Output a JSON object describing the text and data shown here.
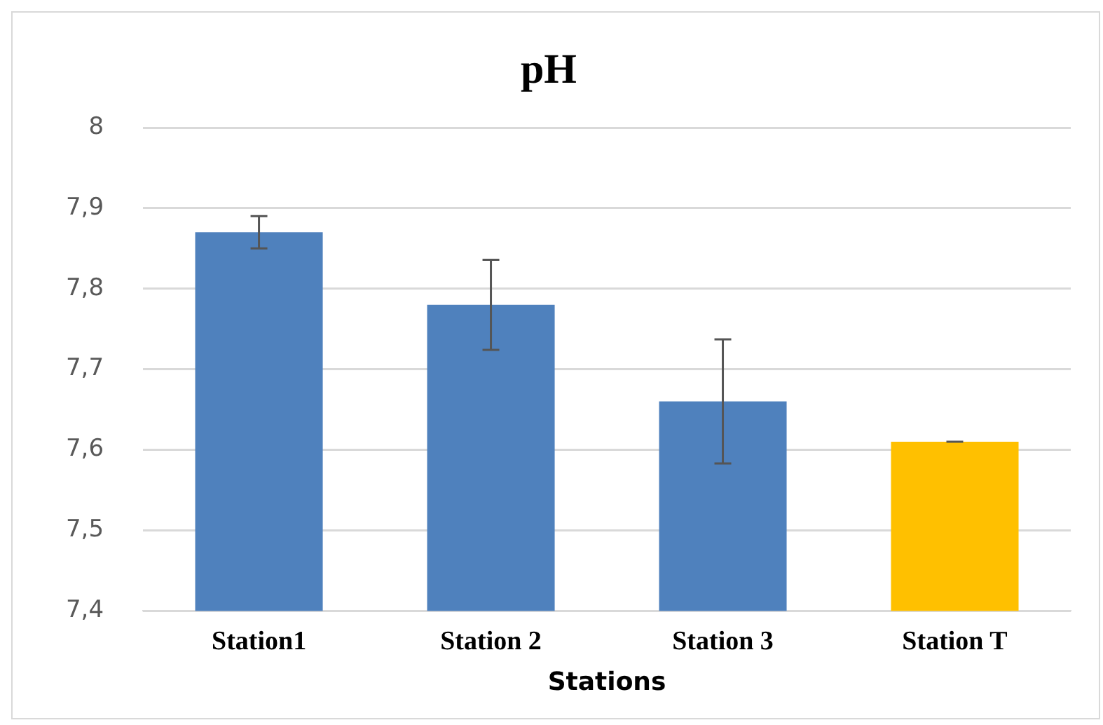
{
  "chart_data": {
    "type": "bar",
    "title": "pH",
    "xlabel": "Stations",
    "categories": [
      "Station1",
      "Station 2",
      "Station 3",
      "Station T"
    ],
    "values": [
      7.87,
      7.78,
      7.66,
      7.61
    ],
    "colors": [
      "#4f81bd",
      "#4f81bd",
      "#4f81bd",
      "#ffc000"
    ],
    "errors": [
      0.02,
      0.056,
      0.077,
      0
    ],
    "ylim": [
      7.4,
      8
    ],
    "yticks": [
      {
        "value": 7.4,
        "label": "7,4"
      },
      {
        "value": 7.5,
        "label": "7,5"
      },
      {
        "value": 7.6,
        "label": "7,6"
      },
      {
        "value": 7.7,
        "label": "7,7"
      },
      {
        "value": 7.8,
        "label": "7,8"
      },
      {
        "value": 7.9,
        "label": "7,9"
      },
      {
        "value": 8,
        "label": "8"
      }
    ],
    "grid": "y",
    "legend": false
  }
}
